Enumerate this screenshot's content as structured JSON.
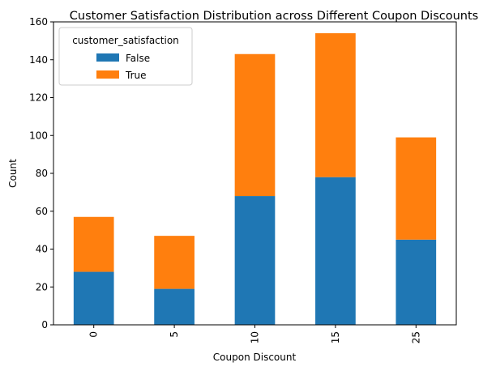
{
  "chart_data": {
    "type": "bar",
    "stacked": true,
    "title": "Customer Satisfaction Distribution across Different Coupon Discounts",
    "xlabel": "Coupon Discount",
    "ylabel": "Count",
    "categories": [
      "0",
      "5",
      "10",
      "15",
      "25"
    ],
    "series": [
      {
        "name": "False",
        "color": "#1f77b4",
        "values": [
          28,
          19,
          68,
          78,
          45
        ]
      },
      {
        "name": "True",
        "color": "#ff7f0e",
        "values": [
          29,
          28,
          75,
          76,
          54
        ]
      }
    ],
    "ylim": [
      0,
      160
    ],
    "yticks": [
      0,
      20,
      40,
      60,
      80,
      100,
      120,
      140,
      160
    ],
    "grid": false,
    "legend": {
      "title": "customer_satisfaction",
      "placement": "upper-left"
    }
  }
}
